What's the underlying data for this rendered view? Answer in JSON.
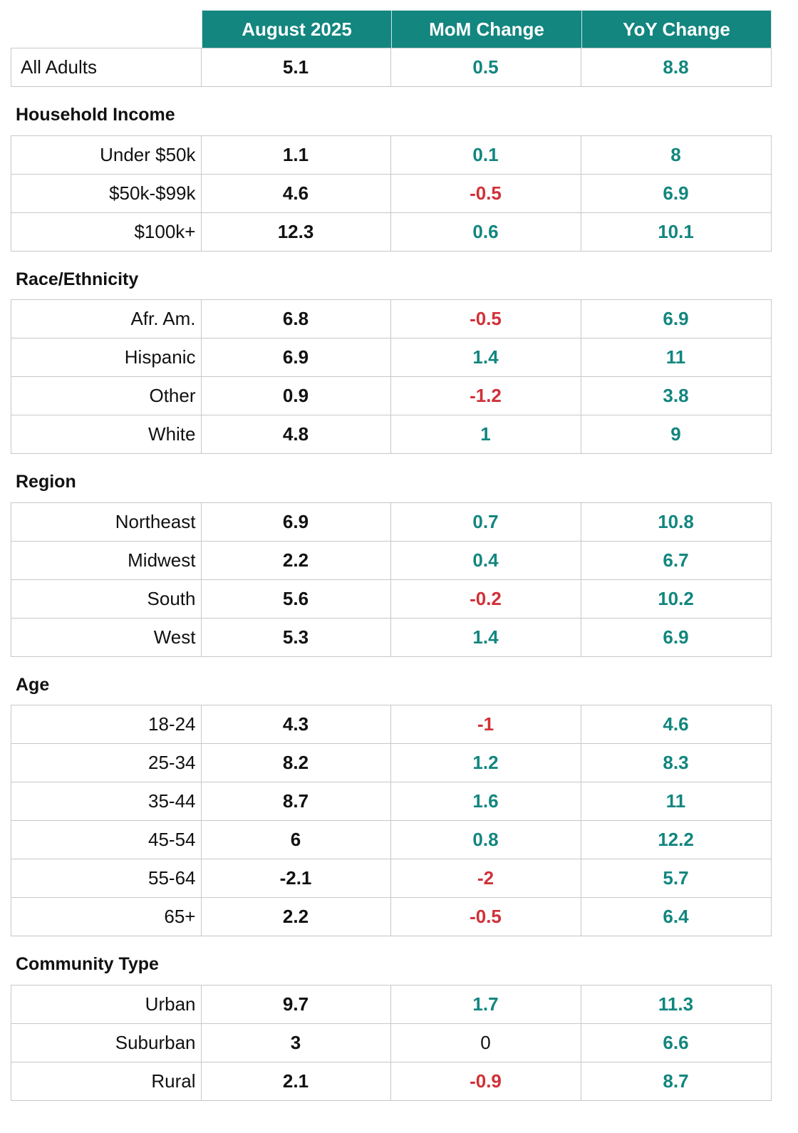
{
  "colors": {
    "header_background": "#12867f",
    "header_text": "#ffffff",
    "positive_change": "#12867f",
    "negative_change": "#d03138",
    "zero_change": "#111111",
    "level_value": "#111111",
    "grid_line": "#c8c8c8"
  },
  "chart_data": {
    "type": "table",
    "columns": [
      "August 2025",
      "MoM Change",
      "YoY Change"
    ],
    "groups": [
      {
        "rows": [
          {
            "label": "All Adults",
            "values": [
              5.1,
              0.5,
              8.8
            ]
          }
        ]
      },
      {
        "title": "Household Income",
        "rows": [
          {
            "label": "Under $50k",
            "values": [
              1.1,
              0.1,
              8
            ]
          },
          {
            "label": "$50k-$99k",
            "values": [
              4.6,
              -0.5,
              6.9
            ]
          },
          {
            "label": "$100k+",
            "values": [
              12.3,
              0.6,
              10.1
            ]
          }
        ]
      },
      {
        "title": "Race/Ethnicity",
        "rows": [
          {
            "label": "Afr. Am.",
            "values": [
              6.8,
              -0.5,
              6.9
            ]
          },
          {
            "label": "Hispanic",
            "values": [
              6.9,
              1.4,
              11
            ]
          },
          {
            "label": "Other",
            "values": [
              0.9,
              -1.2,
              3.8
            ]
          },
          {
            "label": "White",
            "values": [
              4.8,
              1,
              9
            ]
          }
        ]
      },
      {
        "title": "Region",
        "rows": [
          {
            "label": "Northeast",
            "values": [
              6.9,
              0.7,
              10.8
            ]
          },
          {
            "label": "Midwest",
            "values": [
              2.2,
              0.4,
              6.7
            ]
          },
          {
            "label": "South",
            "values": [
              5.6,
              -0.2,
              10.2
            ]
          },
          {
            "label": "West",
            "values": [
              5.3,
              1.4,
              6.9
            ]
          }
        ]
      },
      {
        "title": "Age",
        "rows": [
          {
            "label": "18-24",
            "values": [
              4.3,
              -1,
              4.6
            ]
          },
          {
            "label": "25-34",
            "values": [
              8.2,
              1.2,
              8.3
            ]
          },
          {
            "label": "35-44",
            "values": [
              8.7,
              1.6,
              11
            ]
          },
          {
            "label": "45-54",
            "values": [
              6,
              0.8,
              12.2
            ]
          },
          {
            "label": "55-64",
            "values": [
              -2.1,
              -2,
              5.7
            ]
          },
          {
            "label": "65+",
            "values": [
              2.2,
              -0.5,
              6.4
            ]
          }
        ]
      },
      {
        "title": "Community Type",
        "rows": [
          {
            "label": "Urban",
            "values": [
              9.7,
              1.7,
              11.3
            ]
          },
          {
            "label": "Suburban",
            "values": [
              3,
              0,
              6.6
            ]
          },
          {
            "label": "Rural",
            "values": [
              2.1,
              -0.9,
              8.7
            ]
          }
        ]
      }
    ]
  }
}
